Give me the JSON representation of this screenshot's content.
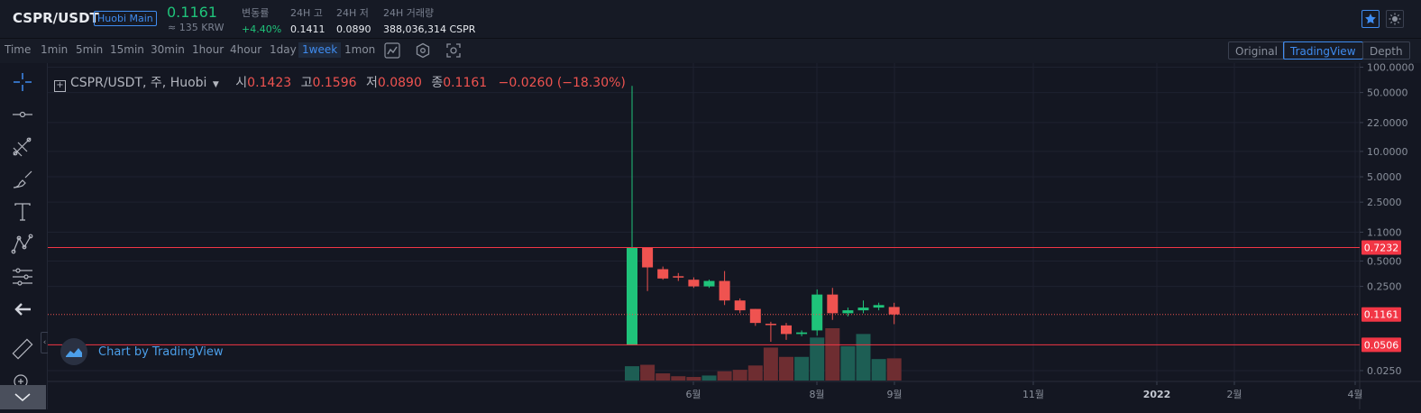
{
  "header": {
    "pair": "CSPR/USDT",
    "exchange_badge": "Huobi Main",
    "last_price": "0.1161",
    "krw_price": "≈ 135 KRW",
    "stats": [
      {
        "label": "변동률",
        "value": "+4.40%"
      },
      {
        "label": "24H 고",
        "value": "0.1411"
      },
      {
        "label": "24H 저",
        "value": "0.0890"
      },
      {
        "label": "24H 거래량",
        "value": "388,036,314 CSPR"
      }
    ],
    "favorite_icon": "star-icon",
    "theme_icon": "sun-icon"
  },
  "toolbar": {
    "label": "Time",
    "timeframes": [
      "1min",
      "5min",
      "15min",
      "30min",
      "1hour",
      "4hour",
      "1day",
      "1week",
      "1mon"
    ],
    "active_timeframe": "1week",
    "icons": [
      "chart-type-icon",
      "settings-hexagon-icon",
      "screenshot-icon"
    ],
    "views": [
      "Original",
      "TradingView",
      "Depth"
    ],
    "active_view": "TradingView"
  },
  "drawing_tools": [
    "crosshair-icon",
    "trend-line-icon",
    "fib-tool-icon",
    "brush-icon",
    "text-icon",
    "pattern-icon",
    "prediction-icon",
    "back-arrow-icon",
    "ruler-icon",
    "zoom-in-icon",
    "chevron-down-icon"
  ],
  "legend": {
    "symbol": "CSPR/USDT, 주, Huobi",
    "o_label": "시",
    "o": "0.1423",
    "h_label": "고",
    "h": "0.1596",
    "l_label": "저",
    "l": "0.0890",
    "c_label": "종",
    "c": "0.1161",
    "change": "−0.0260 (−18.30%)"
  },
  "watermark": "Chart by TradingView",
  "colors": {
    "up": "#26a69a",
    "up_candle": "#1fc37a",
    "down": "#ef5350",
    "accent": "#3f8cf0",
    "background": "#141722"
  },
  "chart_data": {
    "type": "candlestick",
    "log_scale": true,
    "price_axis_ticks": [
      "100.0000",
      "50.0000",
      "22.0000",
      "10.0000",
      "5.0000",
      "2.5000",
      "1.1000",
      "0.5000",
      "0.2500",
      "0.0250"
    ],
    "time_axis_ticks": [
      "6월",
      "8월",
      "9월",
      "11월",
      "2022",
      "2월",
      "4월"
    ],
    "horizontal_lines": [
      {
        "value": 0.7232,
        "label": "0.7232",
        "style": "solid"
      },
      {
        "value": 0.1161,
        "label": "0.1161",
        "style": "dotted"
      },
      {
        "value": 0.0506,
        "label": "0.0506",
        "style": "solid"
      }
    ],
    "candles": [
      {
        "o": 0.05,
        "h": 60.0,
        "l": 0.05,
        "c": 0.72,
        "vol": 2.0
      },
      {
        "o": 0.72,
        "h": 0.72,
        "l": 0.22,
        "c": 0.42,
        "vol": 2.2
      },
      {
        "o": 0.4,
        "h": 0.43,
        "l": 0.3,
        "c": 0.31,
        "vol": 1.0
      },
      {
        "o": 0.33,
        "h": 0.36,
        "l": 0.29,
        "c": 0.32,
        "vol": 0.6
      },
      {
        "o": 0.3,
        "h": 0.32,
        "l": 0.24,
        "c": 0.25,
        "vol": 0.5
      },
      {
        "o": 0.25,
        "h": 0.3,
        "l": 0.24,
        "c": 0.29,
        "vol": 0.7
      },
      {
        "o": 0.29,
        "h": 0.38,
        "l": 0.15,
        "c": 0.17,
        "vol": 1.3
      },
      {
        "o": 0.17,
        "h": 0.18,
        "l": 0.12,
        "c": 0.13,
        "vol": 1.5
      },
      {
        "o": 0.135,
        "h": 0.135,
        "l": 0.085,
        "c": 0.092,
        "vol": 2.1
      },
      {
        "o": 0.09,
        "h": 0.095,
        "l": 0.055,
        "c": 0.088,
        "vol": 4.6
      },
      {
        "o": 0.086,
        "h": 0.092,
        "l": 0.058,
        "c": 0.068,
        "vol": 3.3
      },
      {
        "o": 0.068,
        "h": 0.075,
        "l": 0.064,
        "c": 0.071,
        "vol": 3.3
      },
      {
        "o": 0.075,
        "h": 0.23,
        "l": 0.065,
        "c": 0.2,
        "vol": 6.0
      },
      {
        "o": 0.2,
        "h": 0.24,
        "l": 0.1,
        "c": 0.12,
        "vol": 7.3
      },
      {
        "o": 0.12,
        "h": 0.14,
        "l": 0.11,
        "c": 0.13,
        "vol": 4.8
      },
      {
        "o": 0.13,
        "h": 0.17,
        "l": 0.12,
        "c": 0.14,
        "vol": 6.5
      },
      {
        "o": 0.14,
        "h": 0.16,
        "l": 0.13,
        "c": 0.15,
        "vol": 3.0
      },
      {
        "o": 0.1423,
        "h": 0.1596,
        "l": 0.089,
        "c": 0.1161,
        "vol": 3.1
      }
    ]
  }
}
